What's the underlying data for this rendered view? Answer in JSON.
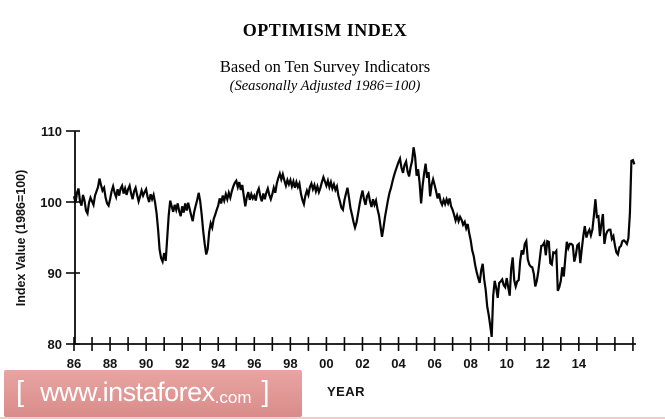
{
  "header": {
    "title": "OPTIMISM INDEX",
    "subtitle": "Based on Ten Survey Indicators",
    "subtitle_note": "(Seasonally Adjusted 1986=100)"
  },
  "watermark": {
    "bracket_left": "[",
    "url_main": "www.instaforex",
    "url_suffix": ".com",
    "bracket_right": "]",
    "bg_color_top": "#e8a5a2",
    "bg_color_bottom": "#d98c8a",
    "text_color": "#ffffff"
  },
  "chart_data": {
    "type": "line",
    "title": "OPTIMISM INDEX",
    "subtitle": "Based on Ten Survey Indicators (Seasonally Adjusted 1986=100)",
    "xlabel": "YEAR",
    "ylabel": "Index Value (1986=100)",
    "x_start_year": 1986,
    "x_interval": "monthly",
    "xlim": [
      1986,
      2017.2
    ],
    "ylim": [
      80,
      110
    ],
    "grid": false,
    "legend": false,
    "line_color": "#050505",
    "y_ticks": [
      110,
      100,
      90,
      80
    ],
    "x_year_ticks": [
      1986,
      1987,
      1988,
      1989,
      1990,
      1991,
      1992,
      1993,
      1994,
      1995,
      1996,
      1997,
      1998,
      1999,
      2000,
      2001,
      2002,
      2003,
      2004,
      2005,
      2006,
      2007,
      2008,
      2009,
      2010,
      2011,
      2012,
      2013,
      2014,
      2015,
      2016,
      2017
    ],
    "x_label_years": [
      1986,
      1988,
      1990,
      1992,
      1994,
      1996,
      1998,
      2000,
      2002,
      2004,
      2006,
      2008,
      2010,
      2012,
      2014
    ],
    "x_tick_labels": [
      "86",
      "88",
      "90",
      "92",
      "94",
      "96",
      "98",
      "00",
      "02",
      "04",
      "06",
      "08",
      "10",
      "12",
      "14"
    ],
    "values": [
      100.8,
      99.9,
      101.3,
      101.9,
      100.1,
      99.5,
      101.0,
      100.2,
      98.8,
      98.4,
      99.9,
      100.6,
      100.1,
      99.6,
      100.9,
      101.5,
      102.1,
      103.3,
      102.4,
      101.6,
      102.0,
      100.6,
      99.8,
      99.5,
      100.4,
      101.5,
      102.2,
      101.3,
      100.7,
      101.8,
      100.9,
      101.9,
      102.3,
      101.2,
      101.9,
      101.0,
      101.8,
      102.3,
      101.2,
      100.4,
      101.5,
      102.0,
      101.0,
      100.1,
      100.8,
      101.6,
      100.9,
      101.4,
      101.8,
      100.7,
      100.0,
      101.1,
      100.4,
      101.0,
      99.9,
      98.4,
      96.1,
      93.3,
      92.1,
      91.6,
      92.8,
      91.7,
      94.9,
      98.1,
      100.2,
      99.4,
      98.6,
      99.6,
      98.9,
      99.8,
      98.7,
      98.0,
      99.4,
      98.5,
      99.8,
      98.8,
      99.9,
      99.0,
      98.1,
      97.3,
      98.6,
      99.5,
      100.3,
      101.3,
      100.1,
      98.2,
      95.9,
      94.1,
      92.6,
      93.4,
      95.8,
      97.0,
      96.4,
      97.6,
      98.2,
      98.9,
      99.5,
      100.5,
      99.8,
      100.9,
      100.2,
      101.1,
      100.4,
      101.3,
      100.6,
      101.5,
      102.2,
      102.7,
      103.0,
      102.1,
      102.8,
      101.7,
      102.4,
      100.8,
      99.4,
      100.7,
      101.4,
      100.3,
      101.1,
      100.5,
      100.9,
      100.2,
      101.4,
      101.9,
      100.8,
      100.1,
      101.2,
      100.4,
      101.3,
      101.9,
      101.0,
      100.4,
      101.1,
      102.0,
      101.3,
      102.6,
      103.4,
      104.0,
      103.2,
      103.9,
      103.0,
      102.3,
      103.1,
      102.5,
      103.1,
      102.2,
      102.9,
      102.0,
      102.8,
      102.1,
      102.6,
      101.2,
      100.3,
      99.7,
      100.9,
      101.6,
      101.0,
      102.1,
      102.6,
      101.8,
      102.4,
      101.5,
      102.2,
      101.4,
      102.0,
      102.8,
      103.5,
      102.9,
      102.3,
      103.0,
      102.1,
      102.8,
      101.9,
      102.5,
      101.7,
      102.2,
      100.9,
      100.1,
      99.2,
      98.9,
      100.3,
      101.2,
      102.0,
      100.6,
      99.1,
      98.2,
      97.2,
      96.4,
      97.1,
      98.3,
      99.6,
      100.7,
      101.6,
      100.4,
      99.6,
      100.8,
      101.2,
      100.1,
      99.3,
      100.4,
      99.6,
      100.2,
      99.0,
      98.1,
      96.6,
      95.1,
      96.4,
      97.9,
      99.1,
      100.3,
      101.3,
      102.0,
      102.9,
      103.7,
      104.4,
      105.0,
      105.6,
      106.1,
      104.8,
      104.1,
      105.2,
      105.7,
      104.3,
      103.6,
      104.9,
      105.8,
      107.7,
      106.4,
      103.7,
      104.6,
      102.7,
      99.8,
      102.3,
      104.0,
      105.4,
      103.4,
      104.2,
      100.8,
      102.4,
      103.2,
      102.4,
      101.5,
      100.5,
      101.2,
      100.1,
      99.6,
      100.3,
      99.7,
      100.4,
      99.8,
      100.5,
      99.4,
      98.9,
      98.2,
      97.4,
      98.1,
      97.3,
      97.9,
      97.5,
      96.8,
      97.2,
      96.3,
      96.9,
      95.6,
      94.6,
      93.2,
      92.4,
      91.1,
      90.1,
      89.3,
      88.6,
      90.4,
      91.3,
      89.1,
      87.6,
      85.3,
      84.1,
      82.6,
      81.0,
      86.8,
      88.9,
      87.9,
      86.5,
      88.6,
      88.8,
      89.1,
      88.3,
      88.0,
      89.3,
      88.0,
      86.8,
      90.6,
      92.2,
      89.0,
      88.1,
      88.8,
      89.0,
      91.7,
      93.2,
      92.6,
      94.1,
      94.5,
      91.9,
      91.2,
      90.9,
      90.8,
      89.9,
      88.1,
      88.9,
      90.2,
      92.0,
      93.8,
      93.9,
      94.3,
      92.5,
      94.5,
      94.4,
      91.4,
      91.2,
      92.9,
      92.8,
      93.1,
      87.5,
      88.0,
      88.9,
      90.8,
      89.5,
      92.1,
      94.4,
      93.5,
      94.1,
      94.1,
      93.9,
      91.6,
      92.5,
      93.9,
      94.1,
      91.4,
      93.4,
      95.2,
      96.6,
      95.0,
      95.7,
      96.1,
      95.3,
      96.1,
      98.1,
      100.4,
      97.9,
      98.0,
      95.2,
      96.9,
      98.3,
      94.1,
      95.4,
      95.9,
      96.1,
      96.1,
      94.8,
      95.2,
      93.9,
      92.9,
      92.6,
      93.6,
      93.8,
      94.5,
      94.6,
      94.4,
      94.1,
      94.9,
      98.4,
      105.8,
      105.9,
      105.3
    ]
  }
}
